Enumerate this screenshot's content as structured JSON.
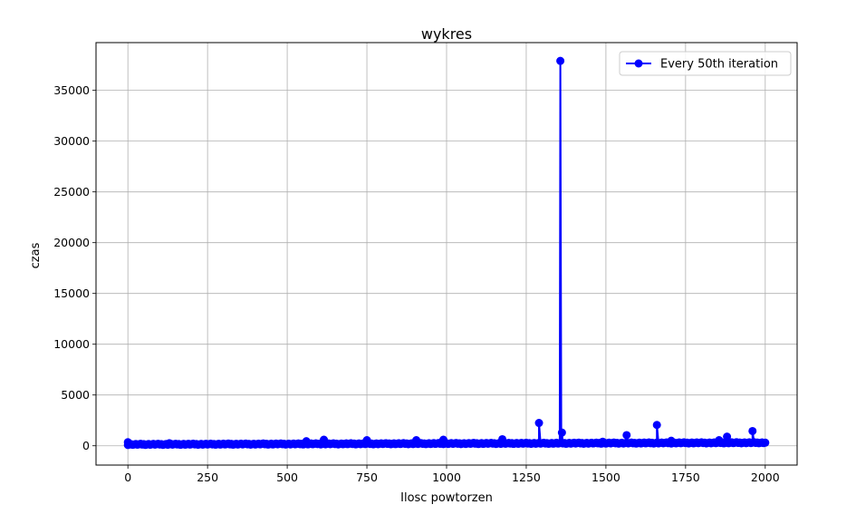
{
  "chart_data": {
    "type": "line",
    "title": "wykres",
    "xlabel": "Ilosc powtorzen",
    "ylabel": "czas",
    "xlim": [
      -100,
      2100
    ],
    "ylim": [
      -1900,
      39700
    ],
    "xticks": [
      0,
      250,
      500,
      750,
      1000,
      1250,
      1500,
      1750,
      2000
    ],
    "yticks": [
      0,
      5000,
      10000,
      15000,
      20000,
      25000,
      30000,
      35000
    ],
    "grid": true,
    "legend_position": "top-right",
    "series": [
      {
        "name": "Every 50th iteration",
        "color": "#0000ff",
        "marker": "circle",
        "baseline": {
          "x_start": 0,
          "x_end": 2000,
          "step": 5,
          "y_start": 80,
          "y_end": 250
        },
        "points": [
          {
            "x": 0,
            "y": 350
          },
          {
            "x": 130,
            "y": 250
          },
          {
            "x": 560,
            "y": 450
          },
          {
            "x": 615,
            "y": 600
          },
          {
            "x": 750,
            "y": 550
          },
          {
            "x": 905,
            "y": 550
          },
          {
            "x": 990,
            "y": 600
          },
          {
            "x": 1175,
            "y": 650
          },
          {
            "x": 1290,
            "y": 2250
          },
          {
            "x": 1357,
            "y": 37900
          },
          {
            "x": 1362,
            "y": 1300
          },
          {
            "x": 1490,
            "y": 400
          },
          {
            "x": 1565,
            "y": 1050
          },
          {
            "x": 1660,
            "y": 2050
          },
          {
            "x": 1705,
            "y": 500
          },
          {
            "x": 1855,
            "y": 550
          },
          {
            "x": 1880,
            "y": 900
          },
          {
            "x": 1960,
            "y": 1450
          }
        ]
      }
    ]
  }
}
